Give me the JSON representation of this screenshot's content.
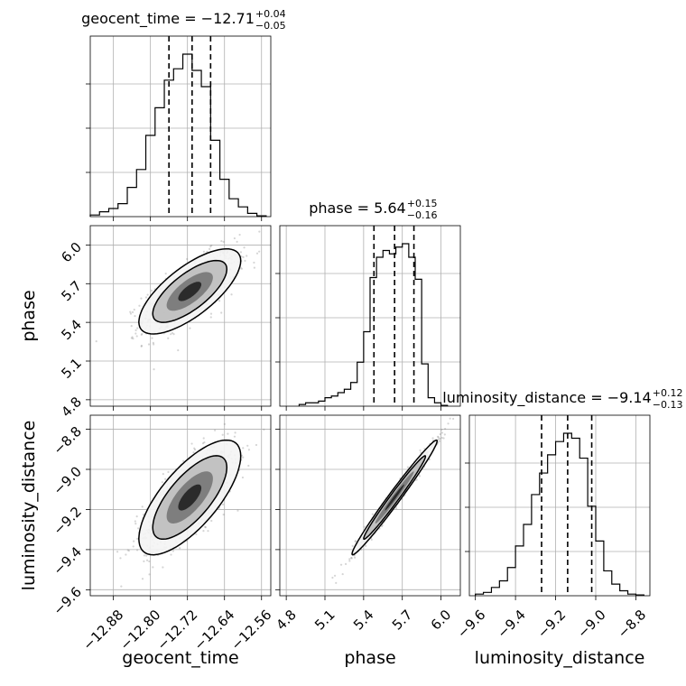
{
  "chart_data": {
    "type": "corner",
    "parameters": [
      "geocent_time",
      "phase",
      "luminosity_distance"
    ],
    "diagonal": [
      {
        "name": "geocent_time",
        "title": "geocent_time = −12.71",
        "title_sup": "+0.04",
        "title_sub": "−0.05",
        "median": -12.71,
        "q16": -12.76,
        "q84": -12.67,
        "range": [
          -12.93,
          -12.54
        ],
        "ticks": [
          "−12.88",
          "−12.80",
          "−12.72",
          "−12.64",
          "−12.56"
        ],
        "tick_values": [
          -12.88,
          -12.8,
          -12.72,
          -12.64,
          -12.56
        ],
        "hist_edges": [
          -12.93,
          -12.91,
          -12.89,
          -12.87,
          -12.85,
          -12.83,
          -12.81,
          -12.79,
          -12.77,
          -12.75,
          -12.73,
          -12.71,
          -12.69,
          -12.67,
          -12.65,
          -12.63,
          -12.61,
          -12.59,
          -12.57,
          -12.55
        ],
        "hist_counts": [
          0.01,
          0.03,
          0.05,
          0.08,
          0.18,
          0.29,
          0.5,
          0.67,
          0.84,
          0.91,
          1.0,
          0.9,
          0.8,
          0.47,
          0.23,
          0.11,
          0.06,
          0.02,
          0.005
        ]
      },
      {
        "name": "phase",
        "title": "phase = 5.64",
        "title_sup": "+0.15",
        "title_sub": "−0.16",
        "median": 5.64,
        "q16": 5.48,
        "q84": 5.79,
        "range": [
          4.75,
          6.15
        ],
        "ticks": [
          "4.8",
          "5.1",
          "5.4",
          "5.7",
          "6.0"
        ],
        "tick_values": [
          4.8,
          5.1,
          5.4,
          5.7,
          6.0
        ],
        "hist_edges": [
          4.9,
          4.95,
          5.0,
          5.05,
          5.1,
          5.15,
          5.2,
          5.25,
          5.3,
          5.35,
          5.4,
          5.45,
          5.5,
          5.55,
          5.6,
          5.65,
          5.7,
          5.75,
          5.8,
          5.85,
          5.9,
          5.95,
          6.0,
          6.05
        ],
        "hist_counts": [
          0.01,
          0.02,
          0.02,
          0.03,
          0.05,
          0.06,
          0.08,
          0.1,
          0.14,
          0.26,
          0.44,
          0.76,
          0.88,
          0.92,
          0.9,
          0.94,
          0.96,
          0.88,
          0.75,
          0.25,
          0.05,
          0.02,
          0.005
        ]
      },
      {
        "name": "luminosity_distance",
        "title": "luminosity_distance = −9.14",
        "title_sup": "+0.12",
        "title_sub": "−0.13",
        "median": -9.14,
        "q16": -9.27,
        "q84": -9.02,
        "range": [
          -9.63,
          -8.73
        ],
        "ticks": [
          "−9.6",
          "−9.4",
          "−9.2",
          "−9.0",
          "−8.8"
        ],
        "tick_values": [
          -9.6,
          -9.4,
          -9.2,
          -9.0,
          -8.8
        ],
        "hist_edges": [
          -9.6,
          -9.56,
          -9.52,
          -9.48,
          -9.44,
          -9.4,
          -9.36,
          -9.32,
          -9.28,
          -9.24,
          -9.2,
          -9.16,
          -9.12,
          -9.08,
          -9.04,
          -9.0,
          -8.96,
          -8.92,
          -8.88,
          -8.84,
          -8.8,
          -8.76
        ],
        "hist_counts": [
          0.01,
          0.02,
          0.05,
          0.09,
          0.17,
          0.3,
          0.43,
          0.61,
          0.74,
          0.85,
          0.93,
          0.98,
          0.95,
          0.83,
          0.54,
          0.33,
          0.15,
          0.07,
          0.03,
          0.01,
          0.005
        ]
      }
    ],
    "pairs": [
      {
        "x": "geocent_time",
        "y": "phase",
        "y_ticks": [
          "4.8",
          "5.1",
          "5.4",
          "5.7",
          "6.0"
        ],
        "y_tick_values": [
          4.8,
          5.1,
          5.4,
          5.7,
          6.0
        ],
        "center": [
          -12.715,
          5.64
        ],
        "sd": [
          0.05,
          0.15
        ],
        "corr": 0.72
      },
      {
        "x": "geocent_time",
        "y": "luminosity_distance",
        "y_ticks": [
          "−9.6",
          "−9.4",
          "−9.2",
          "−9.0",
          "−8.8"
        ],
        "y_tick_values": [
          -9.6,
          -9.4,
          -9.2,
          -9.0,
          -8.8
        ],
        "center": [
          -12.715,
          -9.14
        ],
        "sd": [
          0.05,
          0.13
        ],
        "corr": 0.72
      },
      {
        "x": "phase",
        "y": "luminosity_distance",
        "center": [
          5.64,
          -9.14
        ],
        "sd": [
          0.15,
          0.13
        ],
        "corr": 0.985
      }
    ],
    "axis_labels": {
      "x": [
        "geocent_time",
        "phase",
        "luminosity_distance"
      ],
      "y": [
        "phase",
        "luminosity_distance"
      ]
    },
    "grid": true
  }
}
